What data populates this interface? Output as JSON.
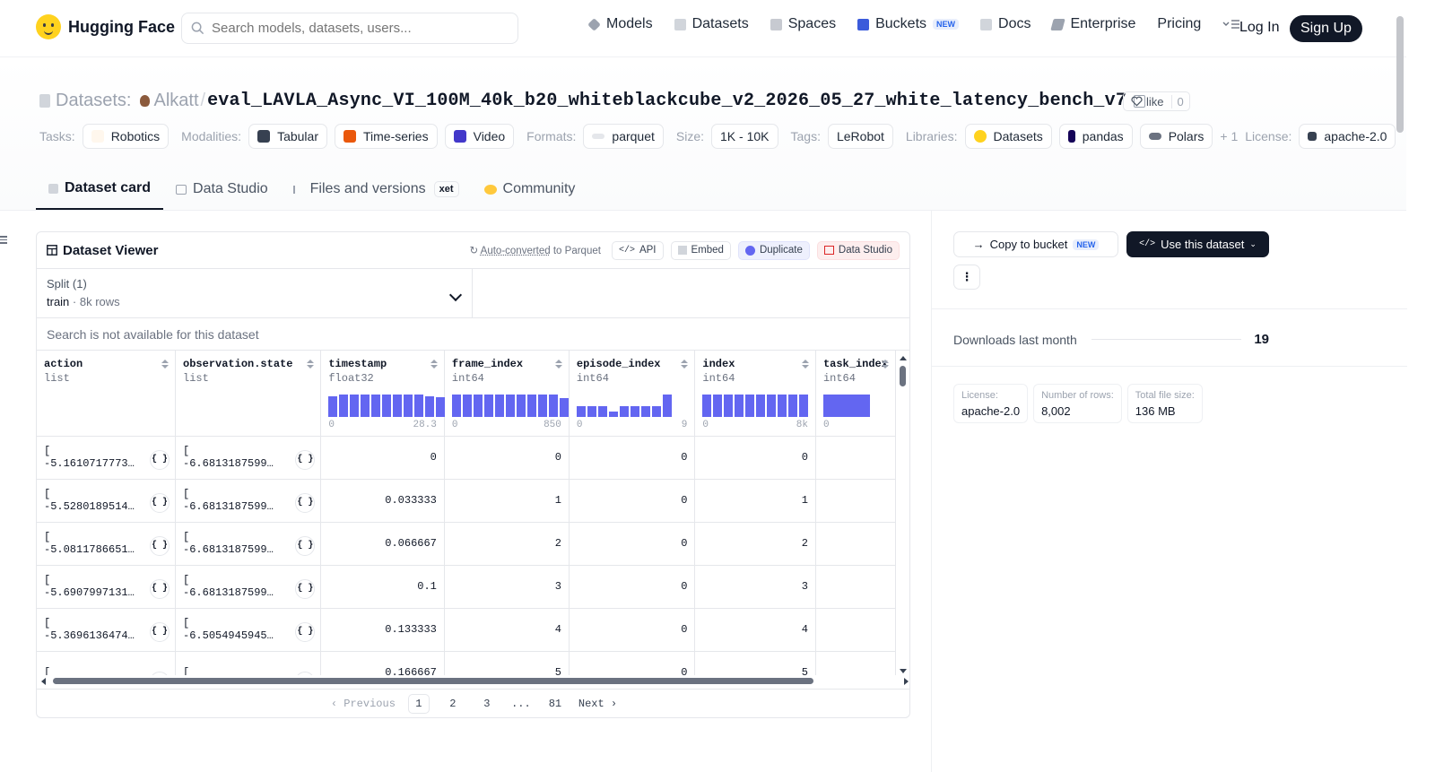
{
  "nav": {
    "brand": "Hugging Face",
    "search_placeholder": "Search models, datasets, users...",
    "links": [
      {
        "label": "Models",
        "icon": "models-icon"
      },
      {
        "label": "Datasets",
        "icon": "datasets-icon"
      },
      {
        "label": "Spaces",
        "icon": "spaces-icon"
      },
      {
        "label": "Buckets",
        "icon": "buckets-icon",
        "badge": "NEW"
      },
      {
        "label": "Docs",
        "icon": "docs-icon"
      },
      {
        "label": "Enterprise",
        "icon": "enterprise-icon"
      },
      {
        "label": "Pricing"
      }
    ],
    "login": "Log In",
    "signup": "Sign Up"
  },
  "header": {
    "section": "Datasets:",
    "owner": "Alkatt",
    "separator": "/",
    "repo": "eval_LAVLA_Async_VI_100M_40k_b20_whiteblackcube_v2_2026_05_27_white_latency_bench_v7",
    "like_label": "like",
    "like_count": "0"
  },
  "tags": {
    "tasks_label": "Tasks:",
    "task": "Robotics",
    "modalities_label": "Modalities:",
    "modalities": [
      "Tabular",
      "Time-series",
      "Video"
    ],
    "formats_label": "Formats:",
    "format": "parquet",
    "size_label": "Size:",
    "size": "1K - 10K",
    "tags_label": "Tags:",
    "tag": "LeRobot",
    "libraries_label": "Libraries:",
    "libraries": [
      "Datasets",
      "pandas",
      "Polars"
    ],
    "more": "+ 1",
    "license_label": "License:",
    "license": "apache-2.0"
  },
  "tabs": {
    "dataset_card": "Dataset card",
    "data_studio": "Data Studio",
    "files": "Files and versions",
    "xet": "xet",
    "community": "Community"
  },
  "viewer": {
    "title": "Dataset Viewer",
    "auto_converted": "Auto-converted",
    "to_parquet": " to Parquet",
    "api": "API",
    "embed": "Embed",
    "duplicate": "Duplicate",
    "data_studio": "Data Studio",
    "split_label": "Split (1)",
    "split_value": "train",
    "split_sep": "·",
    "split_rows": "8k rows",
    "search_note": "Search is not available for this dataset",
    "columns": [
      {
        "name": "action",
        "type": "list"
      },
      {
        "name": "observation.state",
        "type": "list"
      },
      {
        "name": "timestamp",
        "type": "float32",
        "min": "0",
        "max": "28.3",
        "hist": [
          0.9,
          0.95,
          0.95,
          0.95,
          0.95,
          0.95,
          0.95,
          0.95,
          0.95,
          0.9,
          0.85
        ]
      },
      {
        "name": "frame_index",
        "type": "int64",
        "min": "0",
        "max": "850",
        "hist": [
          0.95,
          0.95,
          0.95,
          0.95,
          0.95,
          0.95,
          0.95,
          0.95,
          0.95,
          0.95,
          0.8
        ]
      },
      {
        "name": "episode_index",
        "type": "int64",
        "min": "0",
        "max": "9",
        "hist": [
          0.45,
          0.45,
          0.45,
          0.25,
          0.45,
          0.45,
          0.45,
          0.45,
          0.95
        ]
      },
      {
        "name": "index",
        "type": "int64",
        "min": "0",
        "max": "8k",
        "hist": [
          0.95,
          0.95,
          0.95,
          0.95,
          0.95,
          0.95,
          0.95,
          0.95,
          0.95,
          0.95
        ]
      },
      {
        "name": "task_index",
        "type": "int64",
        "min": "0",
        "max": "",
        "hist": [
          0.95
        ]
      }
    ],
    "rows": [
      {
        "action": "[",
        "action2": "-5.16107177734…",
        "state": "[",
        "state2": "-6.681318759918…",
        "timestamp": "0",
        "frame_index": "0",
        "episode_index": "0",
        "index": "0"
      },
      {
        "action": "[",
        "action2": "-5.52801895141…",
        "state": "[",
        "state2": "-6.681318759918…",
        "timestamp": "0.033333",
        "frame_index": "1",
        "episode_index": "0",
        "index": "1"
      },
      {
        "action": "[",
        "action2": "-5.08117866516…",
        "state": "[",
        "state2": "-6.681318759918…",
        "timestamp": "0.066667",
        "frame_index": "2",
        "episode_index": "0",
        "index": "2"
      },
      {
        "action": "[",
        "action2": "-5.69079971313…",
        "state": "[",
        "state2": "-6.681318759918…",
        "timestamp": "0.1",
        "frame_index": "3",
        "episode_index": "0",
        "index": "3"
      },
      {
        "action": "[",
        "action2": "-5.36961364746…",
        "state": "[",
        "state2": "-6.505494594573…",
        "timestamp": "0.133333",
        "frame_index": "4",
        "episode_index": "0",
        "index": "4"
      },
      {
        "action": "[",
        "action2": "",
        "state": "[",
        "state2": "",
        "timestamp": "0.166667",
        "frame_index": "5",
        "episode_index": "0",
        "index": "5"
      }
    ],
    "json_button": "{ }",
    "pager": {
      "prev": "Previous",
      "pages": [
        "1",
        "2",
        "3",
        "...",
        "81"
      ],
      "current": "1",
      "next": "Next"
    }
  },
  "sidebar": {
    "copy_bucket": "Copy to bucket",
    "copy_bucket_badge": "NEW",
    "use_dataset": "Use this dataset",
    "more": "⋮",
    "downloads_label": "Downloads last month",
    "downloads_value": "19",
    "stats": [
      {
        "label": "License:",
        "value": "apache-2.0"
      },
      {
        "label": "Number of rows:",
        "value": "8,002"
      },
      {
        "label": "Total file size:",
        "value": "136 MB"
      }
    ]
  },
  "colors": {
    "accent": "#6366f1",
    "brand": "#FFD21E",
    "dark": "#111827"
  }
}
